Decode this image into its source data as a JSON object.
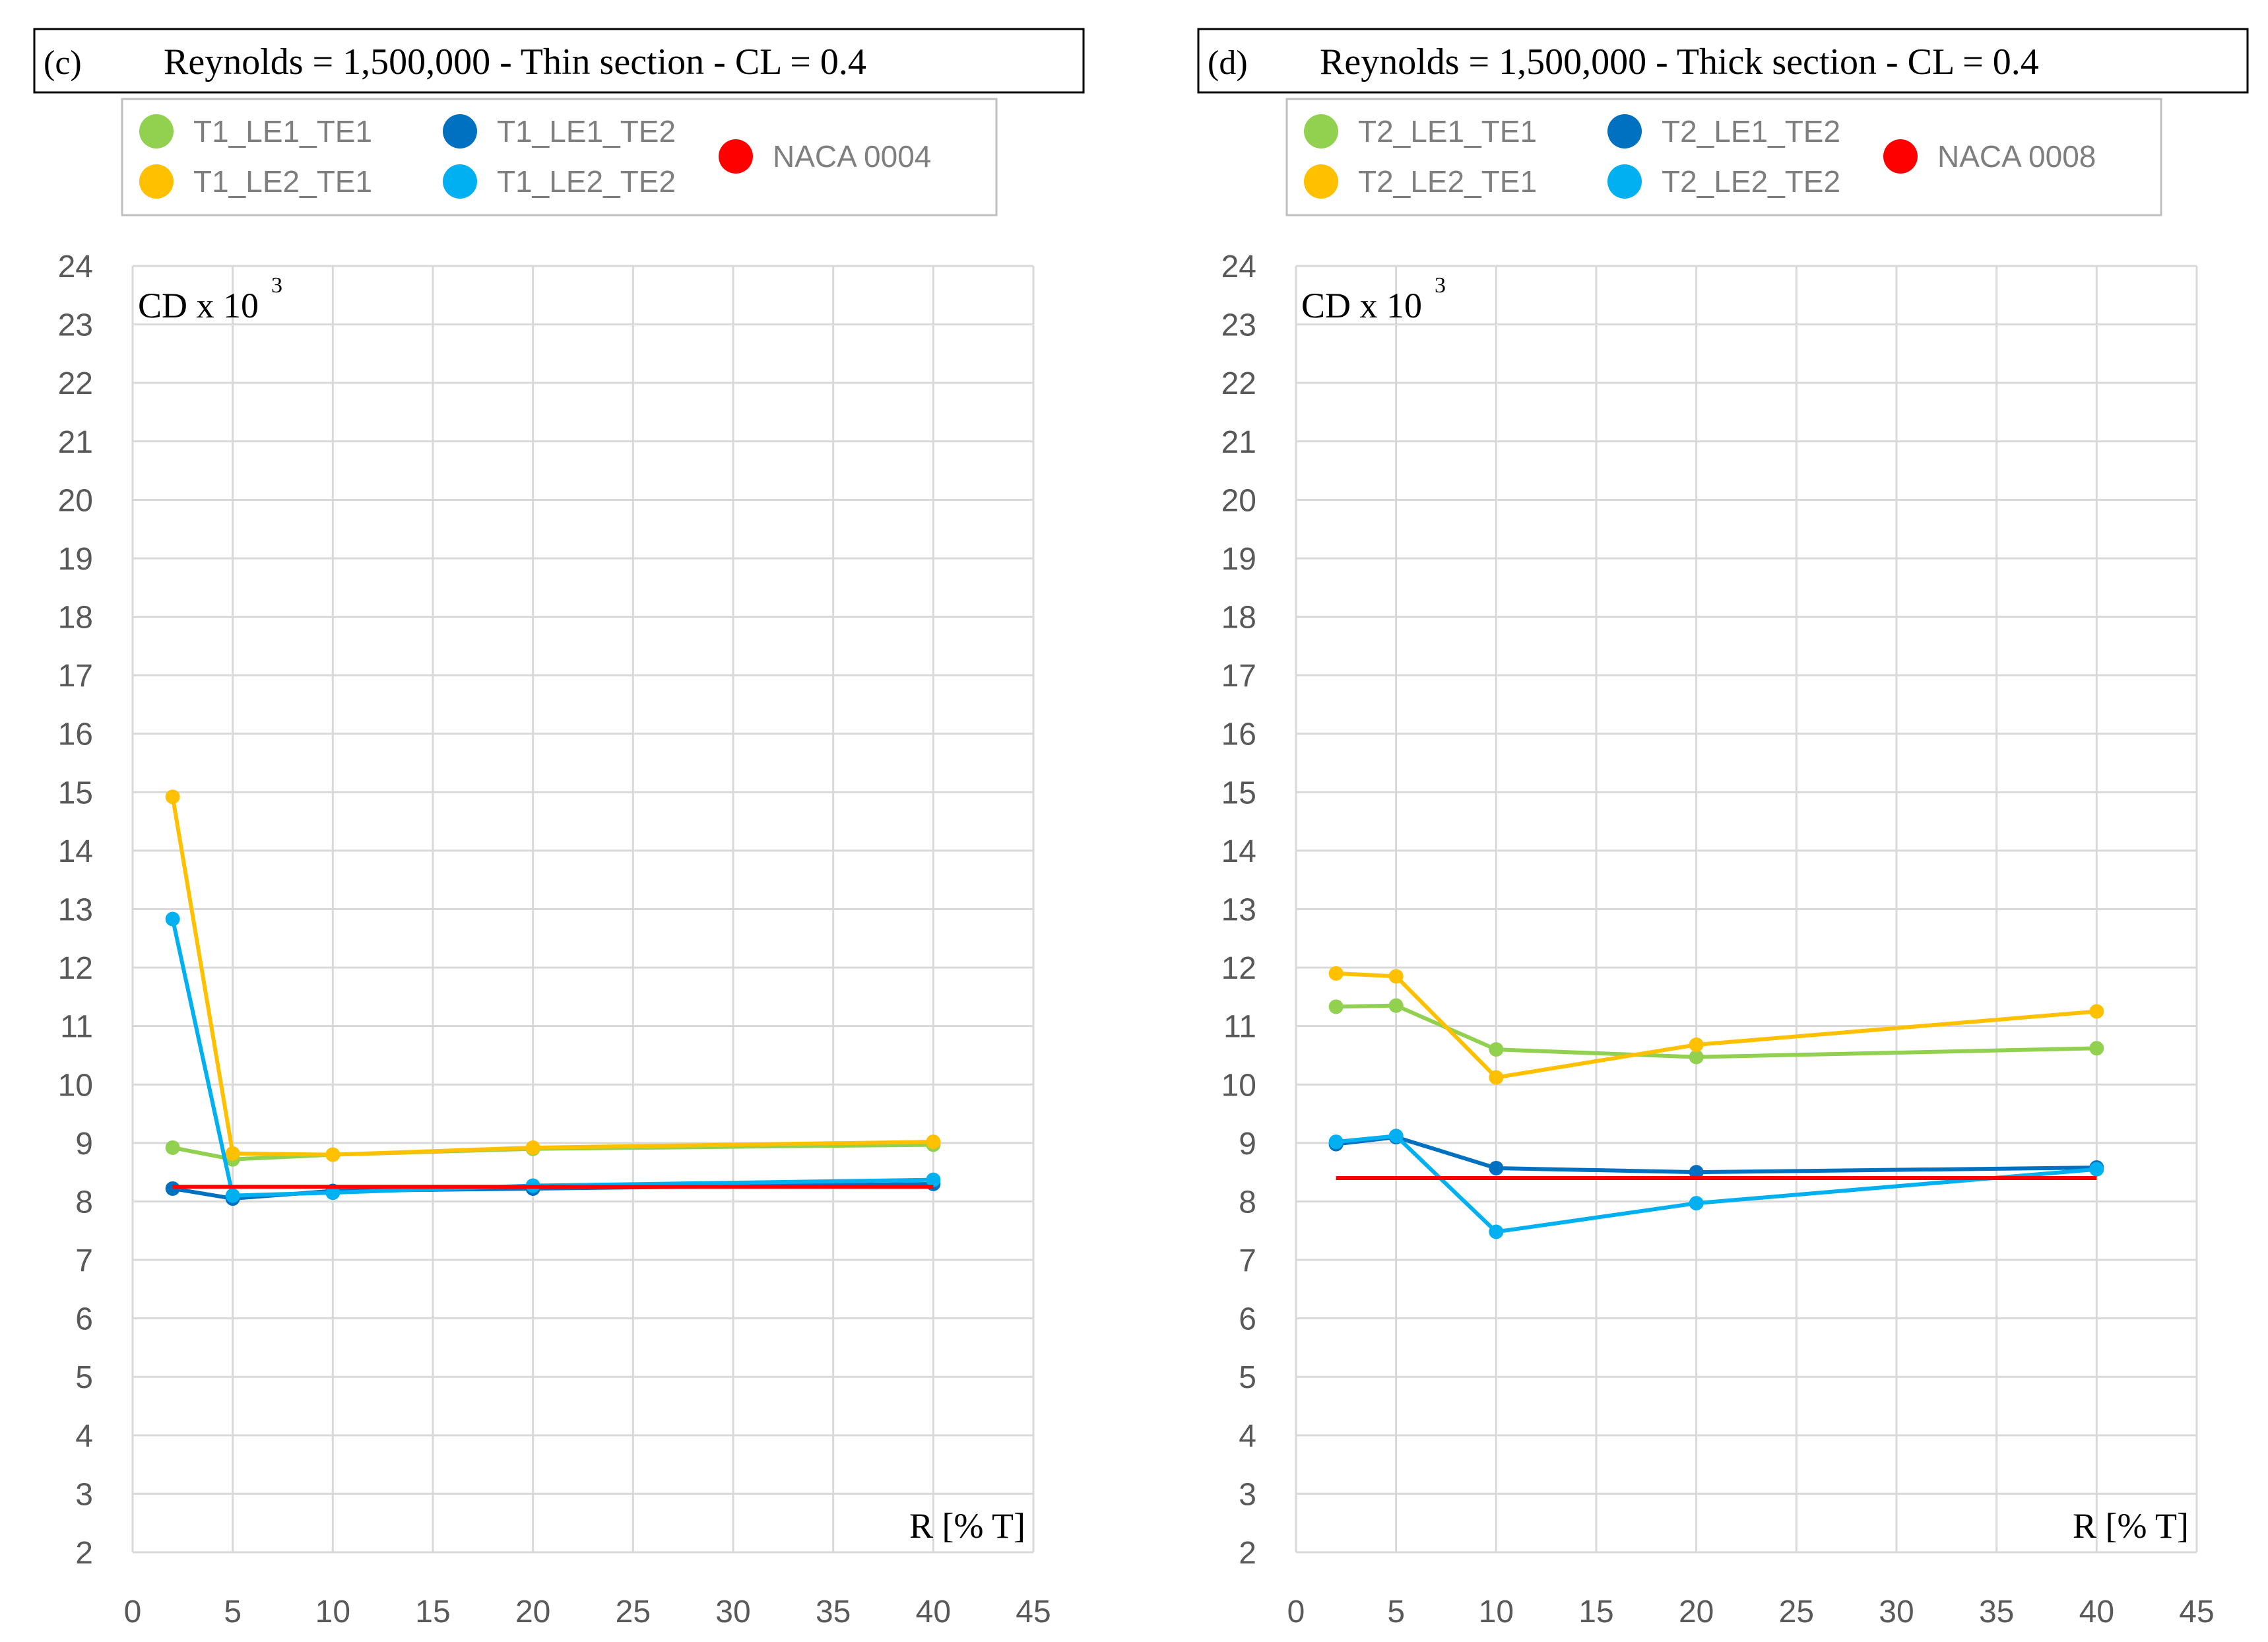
{
  "chart_data": [
    {
      "type": "line",
      "panel_label": "(c)",
      "title": "Reynolds = 1,500,000 - Thin section - CL = 0.4",
      "ylabel": "CD x 10",
      "ylabel_superscript": "3",
      "xlabel": "R [% T]",
      "xlim": [
        0,
        45
      ],
      "ylim": [
        2,
        24
      ],
      "xticks": [
        0,
        5,
        10,
        15,
        20,
        25,
        30,
        35,
        40,
        45
      ],
      "yticks": [
        2,
        3,
        4,
        5,
        6,
        7,
        8,
        9,
        10,
        11,
        12,
        13,
        14,
        15,
        16,
        17,
        18,
        19,
        20,
        21,
        22,
        23,
        24
      ],
      "grid": true,
      "legend_position": "top",
      "series": [
        {
          "name": "T1_LE1_TE1",
          "color": "#92d050",
          "x": [
            2,
            5,
            10,
            20,
            40
          ],
          "y": [
            8.92,
            8.72,
            8.8,
            8.9,
            8.97
          ]
        },
        {
          "name": "T1_LE2_TE1",
          "color": "#ffc000",
          "x": [
            2,
            5,
            10,
            20,
            40
          ],
          "y": [
            14.92,
            8.82,
            8.8,
            8.92,
            9.02
          ]
        },
        {
          "name": "T1_LE1_TE2",
          "color": "#0070c0",
          "x": [
            2,
            5,
            10,
            20,
            40
          ],
          "y": [
            8.22,
            8.05,
            8.18,
            8.22,
            8.3
          ]
        },
        {
          "name": "T1_LE2_TE2",
          "color": "#00b0f0",
          "x": [
            2,
            5,
            10,
            20,
            40
          ],
          "y": [
            12.83,
            8.1,
            8.15,
            8.27,
            8.37
          ]
        },
        {
          "name": "NACA 0004",
          "color": "#ff0000",
          "marker": false,
          "x": [
            2,
            40
          ],
          "y": [
            8.25,
            8.25
          ]
        }
      ]
    },
    {
      "type": "line",
      "panel_label": "(d)",
      "title": "Reynolds = 1,500,000 - Thick section - CL = 0.4",
      "ylabel": "CD x 10",
      "ylabel_superscript": "3",
      "xlabel": "R [% T]",
      "xlim": [
        0,
        45
      ],
      "ylim": [
        2,
        24
      ],
      "xticks": [
        0,
        5,
        10,
        15,
        20,
        25,
        30,
        35,
        40,
        45
      ],
      "yticks": [
        2,
        3,
        4,
        5,
        6,
        7,
        8,
        9,
        10,
        11,
        12,
        13,
        14,
        15,
        16,
        17,
        18,
        19,
        20,
        21,
        22,
        23,
        24
      ],
      "grid": true,
      "legend_position": "top",
      "series": [
        {
          "name": "T2_LE1_TE1",
          "color": "#92d050",
          "x": [
            2,
            5,
            10,
            20,
            40
          ],
          "y": [
            11.33,
            11.35,
            10.6,
            10.47,
            10.62
          ]
        },
        {
          "name": "T2_LE2_TE1",
          "color": "#ffc000",
          "x": [
            2,
            5,
            10,
            20,
            40
          ],
          "y": [
            11.9,
            11.85,
            10.12,
            10.68,
            11.25
          ]
        },
        {
          "name": "T2_LE1_TE2",
          "color": "#0070c0",
          "x": [
            2,
            5,
            10,
            20,
            40
          ],
          "y": [
            8.98,
            9.1,
            8.57,
            8.5,
            8.58
          ]
        },
        {
          "name": "T2_LE2_TE2",
          "color": "#00b0f0",
          "x": [
            2,
            5,
            10,
            20,
            40
          ],
          "y": [
            9.02,
            9.12,
            7.48,
            7.97,
            8.55
          ]
        },
        {
          "name": "NACA 0008",
          "color": "#ff0000",
          "marker": false,
          "x": [
            2,
            40
          ],
          "y": [
            8.4,
            8.4
          ]
        }
      ]
    }
  ]
}
